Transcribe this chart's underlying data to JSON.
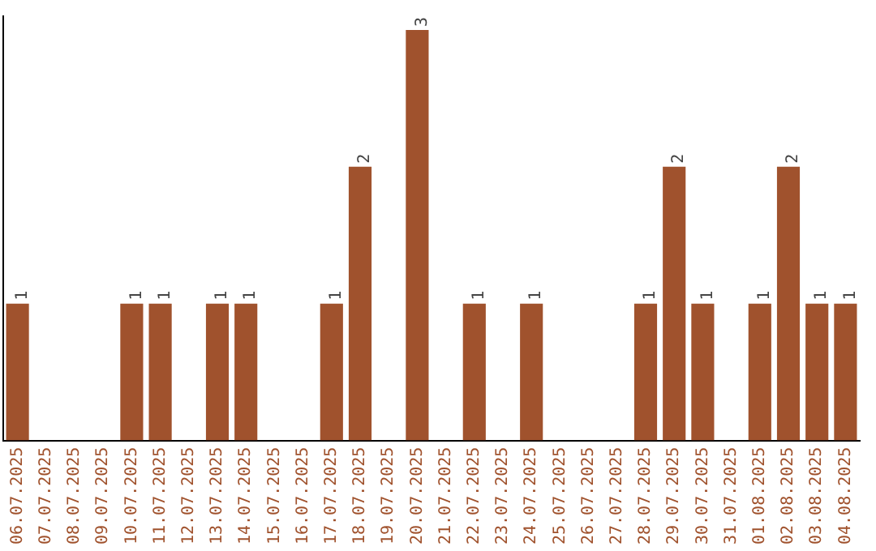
{
  "chart_data": {
    "type": "bar",
    "categories": [
      "06.07.2025",
      "07.07.2025",
      "08.07.2025",
      "09.07.2025",
      "10.07.2025",
      "11.07.2025",
      "12.07.2025",
      "13.07.2025",
      "14.07.2025",
      "15.07.2025",
      "16.07.2025",
      "17.07.2025",
      "18.07.2025",
      "19.07.2025",
      "20.07.2025",
      "21.07.2025",
      "22.07.2025",
      "23.07.2025",
      "24.07.2025",
      "25.07.2025",
      "26.07.2025",
      "27.07.2025",
      "28.07.2025",
      "29.07.2025",
      "30.07.2025",
      "31.07.2025",
      "01.08.2025",
      "02.08.2025",
      "03.08.2025",
      "04.08.2025"
    ],
    "values": [
      1,
      0,
      0,
      0,
      1,
      1,
      0,
      1,
      1,
      0,
      0,
      1,
      2,
      0,
      3,
      0,
      1,
      0,
      1,
      0,
      0,
      0,
      1,
      2,
      1,
      0,
      1,
      2,
      1,
      1
    ],
    "value_labels": [
      "1",
      null,
      null,
      null,
      "1",
      "1",
      null,
      "1",
      "1",
      null,
      null,
      "1",
      "2",
      null,
      "3",
      null,
      "1",
      null,
      "1",
      null,
      null,
      null,
      "1",
      "2",
      "1",
      null,
      "1",
      "2",
      "1",
      "1"
    ],
    "color": "#a0522d",
    "ylim": [
      0,
      3.1
    ],
    "grid": false,
    "legend": false,
    "tick_labels": "x"
  }
}
